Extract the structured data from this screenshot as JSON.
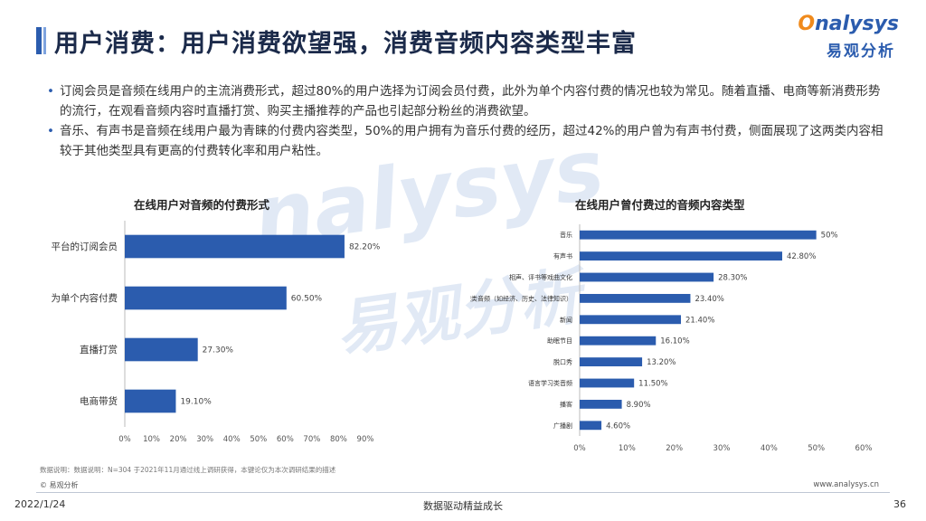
{
  "title": "用户消费：用户消费欲望强，消费音频内容类型丰富",
  "logo": {
    "top_o": "O",
    "top_rest": "nalysys",
    "bottom": "易观分析"
  },
  "bullets": [
    "订阅会员是音频在线用户的主流消费形式，超过80%的用户选择为订阅会员付费，此外为单个内容付费的情况也较为常见。随着直播、电商等新消费形势的流行，在观看音频内容时直播打赏、购买主播推荐的产品也引起部分粉丝的消费欲望。",
    "音乐、有声书是音频在线用户最为青睐的付费内容类型，50%的用户拥有为音乐付费的经历，超过42%的用户曾为有声书付费，侧面展现了这两类内容相较于其他类型具有更高的付费转化率和用户粘性。"
  ],
  "watermark": {
    "line1": "nalysys",
    "line2": "易观分析"
  },
  "chart_data": [
    {
      "type": "bar",
      "orientation": "horizontal",
      "title": "在线用户对音频的付费形式",
      "categories": [
        "平台的订阅会员",
        "为单个内容付费",
        "直播打赏",
        "电商带货"
      ],
      "values": [
        82.2,
        60.5,
        27.3,
        19.1
      ],
      "value_labels": [
        "82.20%",
        "60.50%",
        "27.30%",
        "19.10%"
      ],
      "xlim": [
        0,
        90
      ],
      "ticks": [
        "0%",
        "10%",
        "20%",
        "30%",
        "40%",
        "50%",
        "60%",
        "70%",
        "80%",
        "90%"
      ],
      "color": "#2b5cae"
    },
    {
      "type": "bar",
      "orientation": "horizontal",
      "title": "在线用户曾付费过的音频内容类型",
      "categories": [
        "音乐",
        "有声书",
        "相声、评书等戏曲文化",
        "知识类音频（如经济、历史、法律知识）",
        "新闻",
        "助眠节目",
        "脱口秀",
        "语言学习类音频",
        "播客",
        "广播剧"
      ],
      "values": [
        50,
        42.8,
        28.3,
        23.4,
        21.4,
        16.1,
        13.2,
        11.5,
        8.9,
        4.6
      ],
      "value_labels": [
        "50%",
        "42.80%",
        "28.30%",
        "23.40%",
        "21.40%",
        "16.10%",
        "13.20%",
        "11.50%",
        "8.90%",
        "4.60%"
      ],
      "xlim": [
        0,
        60
      ],
      "ticks": [
        "0%",
        "10%",
        "20%",
        "30%",
        "40%",
        "50%",
        "60%"
      ],
      "color": "#2b5cae"
    }
  ],
  "note": "数据说明：数据说明：N=304 于2021年11月通过线上调研获得，本键论仅为本次调研结果的描述",
  "copyright": "© 易观分析",
  "website": "www.analysys.cn",
  "footer": {
    "date": "2022/1/24",
    "slogan": "数据驱动精益成长",
    "page": "36"
  }
}
